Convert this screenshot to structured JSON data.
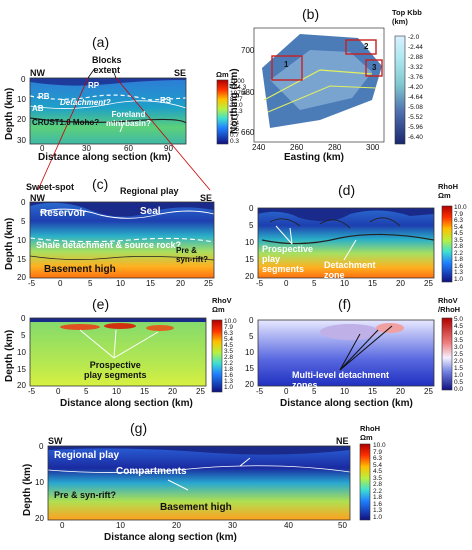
{
  "panels": {
    "a": {
      "label": "(a)",
      "nw": "NW",
      "se": "SE",
      "blocks_extent": "Blocks\nextent",
      "annotations": {
        "rp": "RP",
        "rb": "RB",
        "detachment": "Detachment?",
        "rs": "RS",
        "ab": "AB",
        "crust": "CRUST1.0 Moho?",
        "foreland": "Foreland\nmini-basin?"
      },
      "ylabel": "Depth (km)",
      "xlabel": "Distance along section (km)",
      "yticks": [
        "0",
        "10",
        "20",
        "30"
      ],
      "xticks": [
        "0",
        "30",
        "60",
        "90"
      ],
      "unit": "Ωm",
      "cbar_ticks": [
        "1000",
        "444.3",
        "197.4",
        "87.7",
        "39.0",
        "17.3",
        "7.7",
        "3.4",
        "1.5",
        "0.7",
        "0.3"
      ]
    },
    "b": {
      "label": "(b)",
      "ylabel": "Northing (km)",
      "xlabel": "Easting (km)",
      "yticks": [
        "700",
        "680",
        "660"
      ],
      "xticks": [
        "240",
        "260",
        "280",
        "300"
      ],
      "boxes": [
        "1",
        "2",
        "3"
      ],
      "unit": "Top Kbb\n(km)",
      "cbar_ticks": [
        "-2.0",
        "-2.44",
        "-2.88",
        "-3.32",
        "-3.76",
        "-4.20",
        "-4.64",
        "-5.08",
        "-5.52",
        "-5.96",
        "-6.40"
      ]
    },
    "c": {
      "label": "(c)",
      "nw": "NW",
      "se": "SE",
      "sweet_spot": "Sweet-spot",
      "regional_play": "Regional play",
      "reservoir": "Reservoir",
      "seal": "Seal",
      "shale": "Shale detachment & source rock?",
      "pre_syn": "Pre &\nsyn-rift?",
      "basement": "Basement high",
      "ylabel": "Depth (km)",
      "yticks": [
        "0",
        "5",
        "10",
        "15",
        "20"
      ],
      "xticks": [
        "-5",
        "0",
        "5",
        "10",
        "15",
        "20",
        "25"
      ]
    },
    "d": {
      "label": "(d)",
      "prospective": "Prospective\nplay\nsegments",
      "detachment": "Detachment\nzone",
      "yticks": [
        "0",
        "5",
        "10",
        "15",
        "20"
      ],
      "xticks": [
        "-5",
        "0",
        "5",
        "10",
        "15",
        "20",
        "25"
      ],
      "unit": "RhoH\nΩm",
      "cbar_ticks": [
        "10.0",
        "7.9",
        "6.3",
        "5.4",
        "4.5",
        "3.5",
        "2.8",
        "2.2",
        "1.8",
        "1.6",
        "1.3",
        "1.0"
      ]
    },
    "e": {
      "label": "(e)",
      "prospective": "Prospective\nplay segments",
      "ylabel": "Depth (km)",
      "xlabel": "Distance along section (km)",
      "yticks": [
        "0",
        "5",
        "10",
        "15",
        "20"
      ],
      "xticks": [
        "-5",
        "0",
        "5",
        "10",
        "15",
        "20",
        "25"
      ],
      "unit": "RhoV\nΩm",
      "cbar_ticks": [
        "10.0",
        "7.9",
        "6.3",
        "5.4",
        "4.5",
        "3.5",
        "2.8",
        "2.2",
        "1.8",
        "1.6",
        "1.3",
        "1.0"
      ]
    },
    "f": {
      "label": "(f)",
      "multilevel": "Multi-level detachment\nzones",
      "xlabel": "Distance along section (km)",
      "yticks": [
        "0",
        "5",
        "10",
        "15",
        "20"
      ],
      "xticks": [
        "-5",
        "0",
        "5",
        "10",
        "15",
        "20",
        "25"
      ],
      "unit": "RhoV\n/RhoH",
      "cbar_ticks": [
        "5.0",
        "4.5",
        "4.0",
        "3.5",
        "3.0",
        "2.5",
        "2.0",
        "1.5",
        "1.0",
        "0.5",
        "0.0"
      ]
    },
    "g": {
      "label": "(g)",
      "sw": "SW",
      "ne": "NE",
      "regional_play": "Regional play",
      "compartments": "Compartments",
      "pre_syn": "Pre & syn-rift?",
      "basement": "Basement high",
      "ylabel": "Depth (km)",
      "xlabel": "Distance along section (km)",
      "yticks": [
        "0",
        "10",
        "20"
      ],
      "xticks": [
        "0",
        "10",
        "20",
        "30",
        "40",
        "50"
      ],
      "unit": "RhoH\nΩm",
      "cbar_ticks": [
        "10.0",
        "7.9",
        "6.3",
        "5.4",
        "4.5",
        "3.5",
        "2.8",
        "2.2",
        "1.8",
        "1.6",
        "1.3",
        "1.0"
      ]
    }
  },
  "colors": {
    "resistive": "#d01010",
    "conductive": "#1a1a8c",
    "mid": "#7fd86a"
  }
}
